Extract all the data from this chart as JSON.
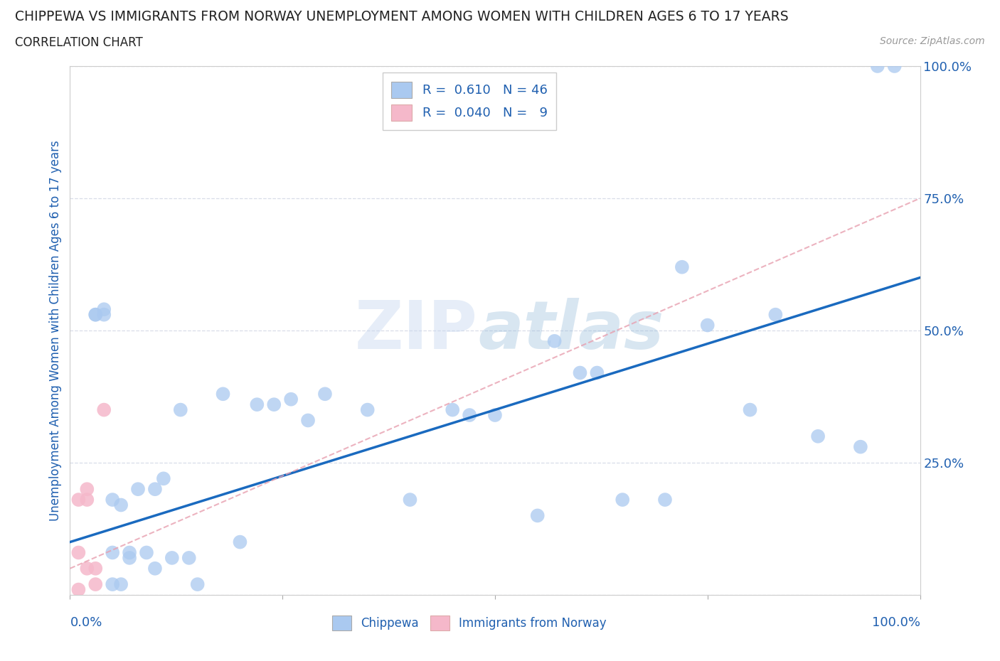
{
  "title": "CHIPPEWA VS IMMIGRANTS FROM NORWAY UNEMPLOYMENT AMONG WOMEN WITH CHILDREN AGES 6 TO 17 YEARS",
  "subtitle": "CORRELATION CHART",
  "source": "Source: ZipAtlas.com",
  "ylabel": "Unemployment Among Women with Children Ages 6 to 17 years",
  "watermark": "ZIPatlas",
  "chippewa_color": "#aac9f0",
  "norway_color": "#f5b8ca",
  "trendline_blue": "#1a6abf",
  "trendline_pink": "#e8a0b0",
  "chippewa_x": [
    3,
    3,
    4,
    4,
    5,
    5,
    5,
    6,
    6,
    7,
    7,
    8,
    9,
    10,
    10,
    11,
    12,
    13,
    14,
    15,
    18,
    20,
    22,
    24,
    26,
    28,
    30,
    35,
    40,
    45,
    47,
    50,
    55,
    57,
    60,
    62,
    65,
    70,
    72,
    75,
    80,
    83,
    88,
    93,
    95,
    97
  ],
  "chippewa_y": [
    53,
    53,
    54,
    53,
    8,
    18,
    2,
    2,
    17,
    7,
    8,
    20,
    8,
    20,
    5,
    22,
    7,
    35,
    7,
    2,
    38,
    10,
    36,
    36,
    37,
    33,
    38,
    35,
    18,
    35,
    34,
    34,
    15,
    48,
    42,
    42,
    18,
    18,
    62,
    51,
    35,
    53,
    30,
    28,
    100,
    100
  ],
  "norway_x": [
    1,
    1,
    1,
    2,
    2,
    2,
    3,
    3,
    4
  ],
  "norway_y": [
    1,
    18,
    8,
    5,
    18,
    20,
    2,
    5,
    35
  ],
  "xlim": [
    0,
    100
  ],
  "ylim": [
    0,
    100
  ],
  "yticks": [
    0,
    25,
    50,
    75,
    100
  ],
  "ytick_labels": [
    "",
    "25.0%",
    "50.0%",
    "75.0%",
    "100.0%"
  ],
  "grid_color": "#d8dde8",
  "background_color": "#ffffff",
  "plot_bg": "#ffffff",
  "blue_trendline_x0": 0,
  "blue_trendline_y0": 10,
  "blue_trendline_x1": 100,
  "blue_trendline_y1": 60,
  "pink_trendline_x0": 0,
  "pink_trendline_y0": 5,
  "pink_trendline_x1": 100,
  "pink_trendline_y1": 75
}
